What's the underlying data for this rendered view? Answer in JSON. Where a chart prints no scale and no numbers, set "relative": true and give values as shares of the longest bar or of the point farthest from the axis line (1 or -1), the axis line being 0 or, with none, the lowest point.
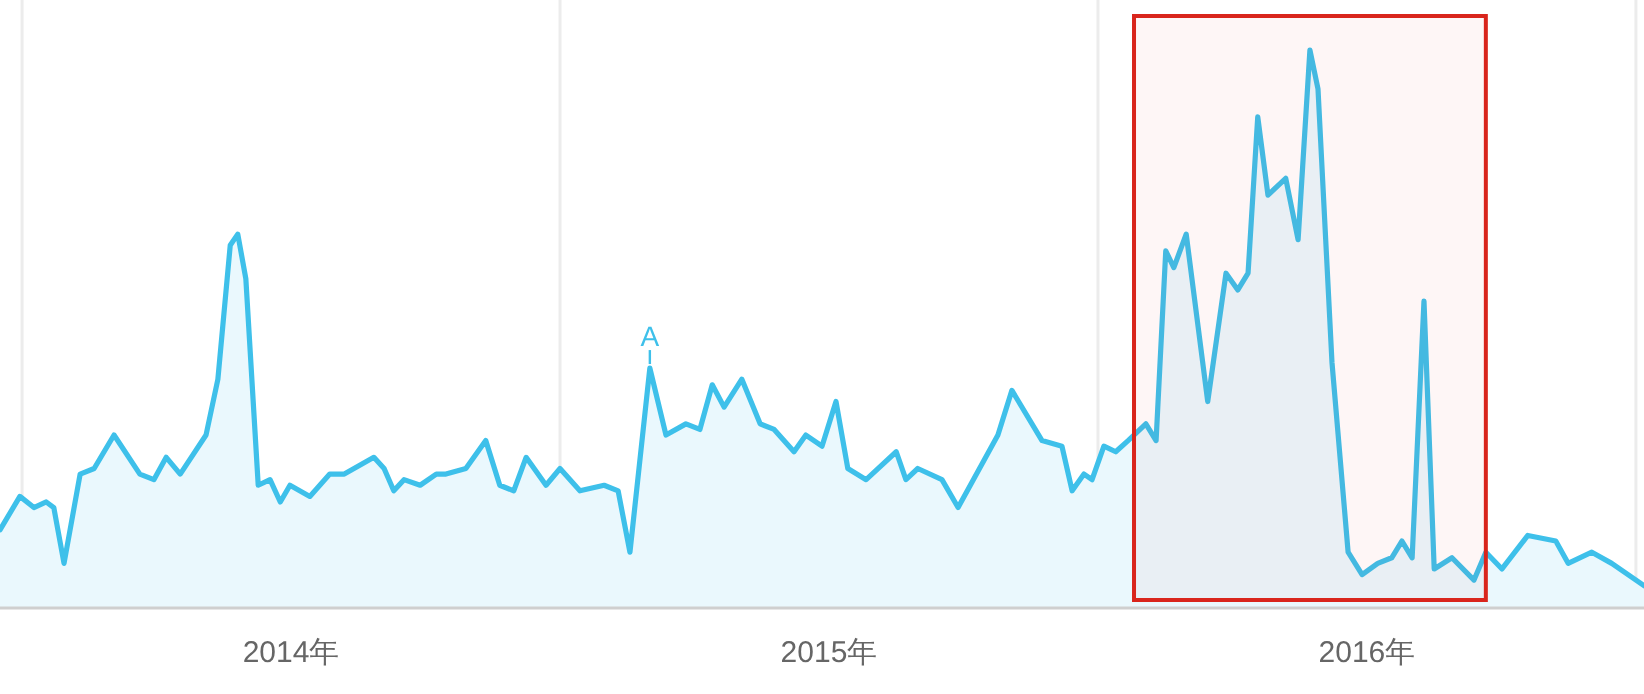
{
  "chart_data": {
    "type": "area",
    "relative": true,
    "color": "#3ec0ea",
    "grid": "x",
    "xlim": [
      2013.959,
      2017.015
    ],
    "xticks": [
      {
        "value": 2014,
        "label": null
      },
      {
        "value": 2014.5,
        "label": "2014年"
      },
      {
        "value": 2015,
        "label": null
      },
      {
        "value": 2015.5,
        "label": "2015年"
      },
      {
        "value": 2016,
        "label": null
      },
      {
        "value": 2016.5,
        "label": "2016年"
      },
      {
        "value": 2017,
        "label": null
      }
    ],
    "annotations": [
      {
        "text": "A",
        "x": 2015.167,
        "y": 0.43
      }
    ],
    "bands": [
      {
        "axis": "x",
        "from": 2016.067,
        "to": 2016.721,
        "color": "#d9251c"
      }
    ],
    "x": [
      2013.959,
      2013.996,
      2014.022,
      2014.045,
      2014.059,
      2014.078,
      2014.108,
      2014.134,
      2014.171,
      2014.219,
      2014.245,
      2014.268,
      2014.294,
      2014.342,
      2014.364,
      2014.387,
      2014.401,
      2014.416,
      2014.439,
      2014.461,
      2014.48,
      2014.498,
      2014.535,
      2014.572,
      2014.599,
      2014.654,
      2014.673,
      2014.691,
      2014.71,
      2014.74,
      2014.77,
      2014.788,
      2014.825,
      2014.862,
      2014.888,
      2014.914,
      2014.937,
      2014.974,
      2015.0,
      2015.037,
      2015.082,
      2015.108,
      2015.13,
      2015.167,
      2015.197,
      2015.234,
      2015.26,
      2015.283,
      2015.305,
      2015.338,
      2015.372,
      2015.398,
      2015.435,
      2015.457,
      2015.487,
      2015.513,
      2015.535,
      2015.569,
      2015.625,
      2015.643,
      2015.665,
      2015.71,
      2015.74,
      2015.814,
      2015.84,
      2015.896,
      2015.933,
      2015.952,
      2015.974,
      2015.989,
      2016.011,
      2016.033,
      2016.056,
      2016.089,
      2016.108,
      2016.126,
      2016.141,
      2016.164,
      2016.204,
      2016.238,
      2016.26,
      2016.279,
      2016.297,
      2016.316,
      2016.349,
      2016.372,
      2016.394,
      2016.409,
      2016.435,
      2016.465,
      2016.491,
      2016.52,
      2016.546,
      2016.565,
      2016.584,
      2016.606,
      2016.625,
      2016.658,
      2016.699,
      2016.721,
      2016.751,
      2016.799,
      2016.851,
      2016.874,
      2016.918,
      2016.955,
      2017.015
    ],
    "values": [
      0.14,
      0.2,
      0.18,
      0.19,
      0.18,
      0.08,
      0.24,
      0.25,
      0.31,
      0.24,
      0.23,
      0.27,
      0.24,
      0.31,
      0.41,
      0.65,
      0.67,
      0.59,
      0.22,
      0.23,
      0.19,
      0.22,
      0.2,
      0.24,
      0.24,
      0.27,
      0.25,
      0.21,
      0.23,
      0.22,
      0.24,
      0.24,
      0.25,
      0.3,
      0.22,
      0.21,
      0.27,
      0.22,
      0.25,
      0.21,
      0.22,
      0.21,
      0.1,
      0.43,
      0.31,
      0.33,
      0.32,
      0.4,
      0.36,
      0.41,
      0.33,
      0.32,
      0.28,
      0.31,
      0.29,
      0.37,
      0.25,
      0.23,
      0.28,
      0.23,
      0.25,
      0.23,
      0.18,
      0.31,
      0.39,
      0.3,
      0.29,
      0.21,
      0.24,
      0.23,
      0.29,
      0.28,
      0.3,
      0.33,
      0.3,
      0.64,
      0.61,
      0.67,
      0.37,
      0.6,
      0.57,
      0.6,
      0.88,
      0.74,
      0.77,
      0.66,
      1.0,
      0.93,
      0.44,
      0.1,
      0.06,
      0.08,
      0.09,
      0.12,
      0.09,
      0.55,
      0.07,
      0.09,
      0.05,
      0.1,
      0.07,
      0.13,
      0.12,
      0.08,
      0.1,
      0.08,
      0.04
    ]
  }
}
